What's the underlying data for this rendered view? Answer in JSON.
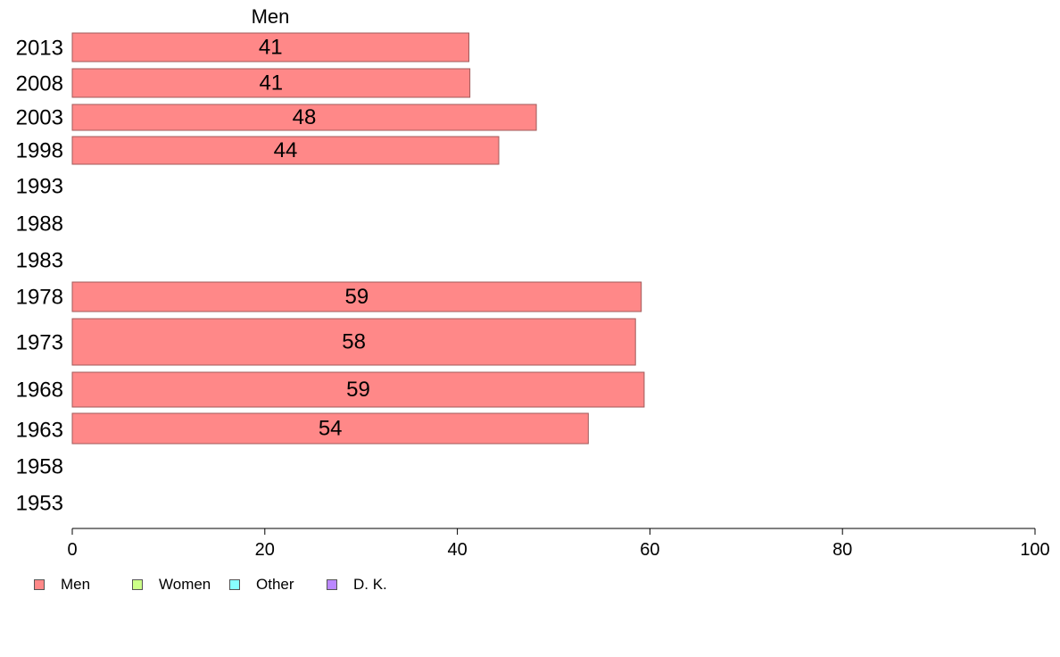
{
  "chart_data": {
    "type": "bar",
    "orientation": "horizontal",
    "series_title": "Men",
    "categories": [
      "2013",
      "2008",
      "2003",
      "1998",
      "1993",
      "1988",
      "1983",
      "1978",
      "1973",
      "1968",
      "1963",
      "1958",
      "1953"
    ],
    "series": [
      {
        "name": "Men",
        "color": "#ff8888",
        "values": [
          41.2,
          41.3,
          48.2,
          44.3,
          null,
          null,
          null,
          59.1,
          58.5,
          59.4,
          53.6,
          null,
          null
        ],
        "data_labels": [
          "41",
          "41",
          "48",
          "44",
          "",
          "",
          "",
          "59",
          "58",
          "59",
          "54",
          "",
          ""
        ]
      }
    ],
    "xlim": [
      0,
      100
    ],
    "xticks": [
      "0",
      "20",
      "40",
      "60",
      "80",
      "100"
    ],
    "grid": false,
    "legend_position": "bottom-left",
    "legend": [
      {
        "label": "Men",
        "color": "#ff8888"
      },
      {
        "label": "Women",
        "color": "#ccff88"
      },
      {
        "label": "Other",
        "color": "#88ffff"
      },
      {
        "label": "D. K.",
        "color": "#bb88ff"
      }
    ]
  }
}
